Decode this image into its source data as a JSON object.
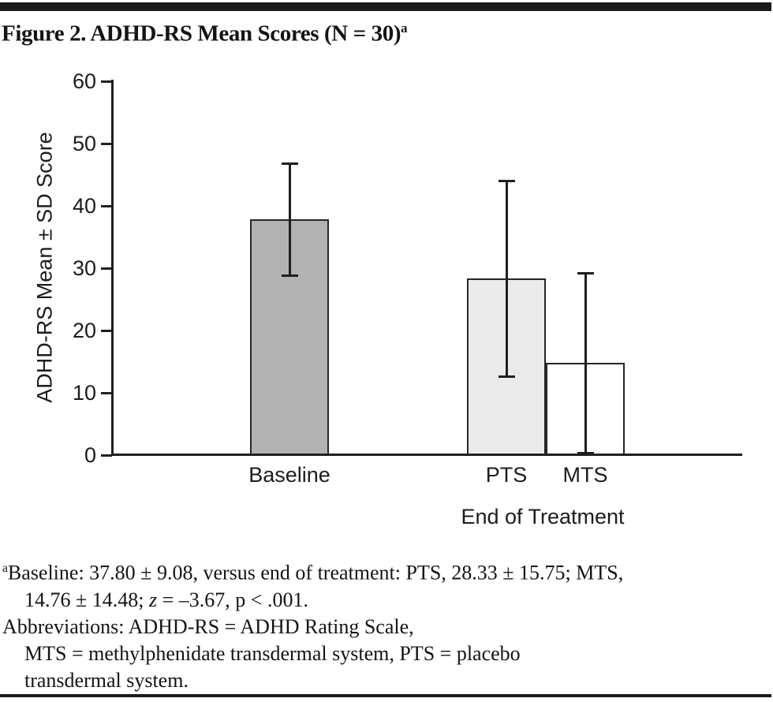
{
  "title": {
    "text": "Figure 2. ADHD-RS Mean Scores (N = 30)",
    "superscript": "a"
  },
  "chart_data": {
    "type": "bar",
    "title": "Figure 2. ADHD-RS Mean Scores (N = 30)",
    "ylabel": "ADHD-RS Mean ± SD Score",
    "group_xlabel": "End of Treatment",
    "xlabel": "",
    "ylim": [
      0,
      60
    ],
    "yticks": [
      0,
      10,
      20,
      30,
      40,
      50,
      60
    ],
    "grid": false,
    "legend": false,
    "categories": [
      "Baseline",
      "PTS",
      "MTS"
    ],
    "series": [
      {
        "name": "ADHD-RS Mean ± SD Score",
        "values": [
          37.8,
          28.33,
          14.76
        ],
        "sd": [
          9.08,
          15.75,
          14.48
        ],
        "error_bar_low": [
          28.72,
          12.58,
          0.28
        ],
        "error_bar_high": [
          46.88,
          44.08,
          29.24
        ]
      }
    ],
    "bar_colors": [
      "#b2b2b2",
      "#ebebeb",
      "#ffffff"
    ],
    "bar_outline_color": "#262626",
    "axis_color": "#231f20"
  },
  "footnote": {
    "marker": "a",
    "line1": "Baseline: 37.80 ± 9.08, versus end of treatment: PTS, 28.33 ± 15.75; MTS,",
    "line2_pre": "14.76 ± 14.48; ",
    "line2_stat": "z",
    "line2_post": " = –3.67, p < .001.",
    "line3": "Abbreviations: ADHD-RS = ADHD Rating Scale,",
    "line4": "MTS = methylphenidate transdermal system, PTS = placebo",
    "line5": "transdermal system."
  },
  "colors": {
    "rule": "#1a1a1a",
    "text": "#141414"
  }
}
